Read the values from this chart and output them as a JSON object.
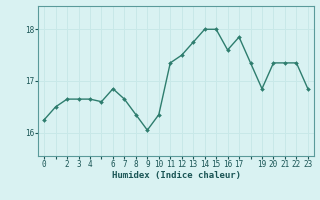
{
  "x": [
    0,
    1,
    2,
    3,
    4,
    5,
    6,
    7,
    8,
    9,
    10,
    11,
    12,
    13,
    14,
    15,
    16,
    17,
    18,
    19,
    20,
    21,
    22,
    23
  ],
  "y": [
    16.25,
    16.5,
    16.65,
    16.65,
    16.65,
    16.6,
    16.85,
    16.65,
    16.35,
    16.05,
    16.35,
    17.35,
    17.5,
    17.75,
    18.0,
    18.0,
    17.6,
    17.85,
    17.35,
    16.85,
    17.35,
    17.35,
    17.35,
    16.85
  ],
  "line_color": "#2e7d6e",
  "marker": "D",
  "marker_size": 2.0,
  "line_width": 1.0,
  "bg_color": "#d9f2f2",
  "grid_color": "#c8e8e8",
  "xlabel": "Humidex (Indice chaleur)",
  "yticks": [
    16,
    17,
    18
  ],
  "xtick_labels": [
    "0",
    "",
    "2",
    "3",
    "4",
    "",
    "6",
    "7",
    "8",
    "9",
    "10",
    "11",
    "12",
    "13",
    "14",
    "15",
    "16",
    "17",
    "",
    "19",
    "20",
    "21",
    "22",
    "23"
  ],
  "xlim": [
    -0.5,
    23.5
  ],
  "ylim": [
    15.55,
    18.45
  ]
}
